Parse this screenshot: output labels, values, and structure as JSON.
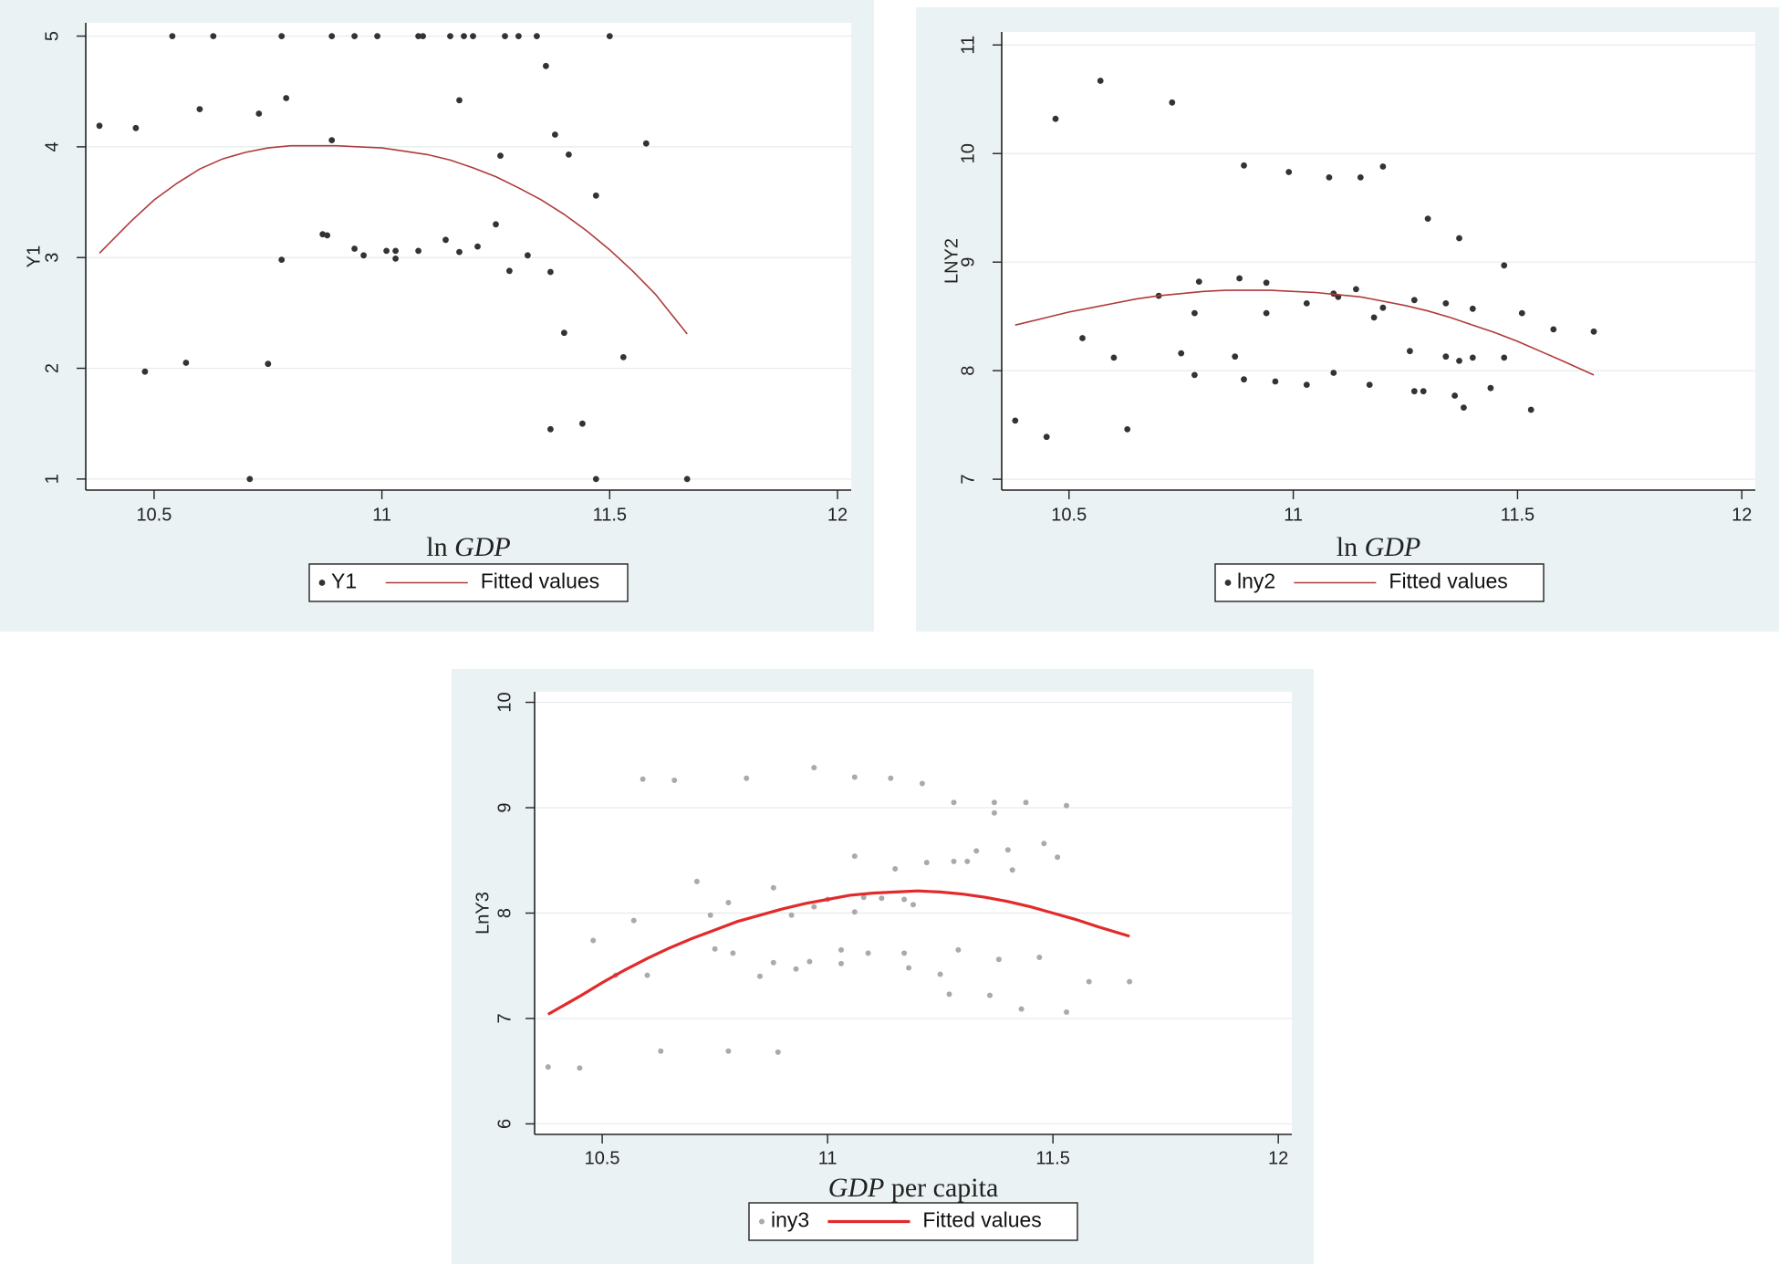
{
  "chart_data": [
    {
      "type": "scatter",
      "xlabel": "ln GDP",
      "xlabel_parts": [
        "ln ",
        "GDP",
        ""
      ],
      "ylabel": "Y1",
      "xlim": [
        10.35,
        12.03
      ],
      "ylim": [
        0.9,
        5.12
      ],
      "xticks": [
        "10.5",
        "11",
        "11.5",
        "12"
      ],
      "yticks": [
        "1",
        "2",
        "3",
        "4",
        "5"
      ],
      "grid": true,
      "legend_position": "bottom",
      "legend": [
        "Y1",
        "Fitted values"
      ],
      "colors": {
        "points": "#333333",
        "fit": "#b03a3a",
        "background": "#eaf2f3",
        "plot": "#ffffff"
      },
      "series": [
        {
          "name": "Y1",
          "kind": "points",
          "points": [
            [
              10.38,
              4.19
            ],
            [
              10.46,
              4.17
            ],
            [
              10.54,
              5.0
            ],
            [
              10.63,
              5.0
            ],
            [
              10.78,
              5.0
            ],
            [
              10.89,
              5.0
            ],
            [
              10.94,
              5.0
            ],
            [
              10.99,
              5.0
            ],
            [
              11.08,
              5.0
            ],
            [
              11.09,
              5.0
            ],
            [
              11.15,
              5.0
            ],
            [
              11.18,
              5.0
            ],
            [
              11.2,
              5.0
            ],
            [
              11.27,
              5.0
            ],
            [
              11.3,
              5.0
            ],
            [
              11.34,
              5.0
            ],
            [
              11.5,
              5.0
            ],
            [
              10.6,
              4.34
            ],
            [
              10.73,
              4.3
            ],
            [
              10.79,
              4.44
            ],
            [
              11.17,
              4.42
            ],
            [
              11.36,
              4.73
            ],
            [
              10.89,
              4.06
            ],
            [
              11.58,
              4.03
            ],
            [
              11.26,
              3.92
            ],
            [
              11.38,
              4.11
            ],
            [
              11.41,
              3.93
            ],
            [
              11.47,
              3.56
            ],
            [
              10.87,
              3.21
            ],
            [
              10.88,
              3.2
            ],
            [
              10.94,
              3.08
            ],
            [
              10.96,
              3.02
            ],
            [
              11.01,
              3.06
            ],
            [
              11.03,
              3.06
            ],
            [
              11.03,
              2.99
            ],
            [
              11.08,
              3.06
            ],
            [
              11.14,
              3.16
            ],
            [
              11.17,
              3.05
            ],
            [
              11.21,
              3.1
            ],
            [
              11.25,
              3.3
            ],
            [
              11.32,
              3.02
            ],
            [
              11.28,
              2.88
            ],
            [
              11.37,
              2.87
            ],
            [
              10.78,
              2.98
            ],
            [
              11.4,
              2.32
            ],
            [
              11.53,
              2.1
            ],
            [
              10.48,
              1.97
            ],
            [
              10.57,
              2.05
            ],
            [
              10.75,
              2.04
            ],
            [
              11.37,
              1.45
            ],
            [
              11.44,
              1.5
            ],
            [
              10.71,
              1.0
            ],
            [
              11.47,
              1.0
            ],
            [
              11.67,
              1.0
            ]
          ]
        },
        {
          "name": "Fitted values",
          "kind": "line",
          "points": [
            [
              10.38,
              3.04
            ],
            [
              10.45,
              3.33
            ],
            [
              10.5,
              3.52
            ],
            [
              10.55,
              3.67
            ],
            [
              10.6,
              3.8
            ],
            [
              10.65,
              3.89
            ],
            [
              10.7,
              3.95
            ],
            [
              10.75,
              3.99
            ],
            [
              10.8,
              4.01
            ],
            [
              10.9,
              4.01
            ],
            [
              10.95,
              4.0
            ],
            [
              11.0,
              3.99
            ],
            [
              11.05,
              3.96
            ],
            [
              11.1,
              3.93
            ],
            [
              11.15,
              3.88
            ],
            [
              11.2,
              3.81
            ],
            [
              11.25,
              3.73
            ],
            [
              11.3,
              3.63
            ],
            [
              11.35,
              3.52
            ],
            [
              11.4,
              3.39
            ],
            [
              11.45,
              3.24
            ],
            [
              11.5,
              3.07
            ],
            [
              11.55,
              2.88
            ],
            [
              11.6,
              2.67
            ],
            [
              11.67,
              2.31
            ]
          ]
        }
      ]
    },
    {
      "type": "scatter",
      "xlabel": "ln GDP",
      "xlabel_parts": [
        "ln ",
        "GDP",
        ""
      ],
      "ylabel": "LNY2",
      "xlim": [
        10.35,
        12.03
      ],
      "ylim": [
        6.9,
        11.12
      ],
      "xticks": [
        "10.5",
        "11",
        "11.5",
        "12"
      ],
      "yticks": [
        "7",
        "8",
        "9",
        "10",
        "11"
      ],
      "grid": true,
      "legend_position": "bottom",
      "legend": [
        "lny2",
        "Fitted values"
      ],
      "colors": {
        "points": "#333333",
        "fit": "#b03a3a",
        "background": "#eaf2f3",
        "plot": "#ffffff"
      },
      "series": [
        {
          "name": "lny2",
          "kind": "points",
          "points": [
            [
              10.47,
              10.32
            ],
            [
              10.57,
              10.67
            ],
            [
              10.73,
              10.47
            ],
            [
              10.89,
              9.89
            ],
            [
              10.99,
              9.83
            ],
            [
              11.08,
              9.78
            ],
            [
              11.15,
              9.78
            ],
            [
              11.2,
              9.88
            ],
            [
              11.3,
              9.4
            ],
            [
              11.37,
              9.22
            ],
            [
              11.47,
              8.97
            ],
            [
              10.7,
              8.69
            ],
            [
              10.79,
              8.82
            ],
            [
              10.88,
              8.85
            ],
            [
              10.94,
              8.81
            ],
            [
              10.78,
              8.53
            ],
            [
              10.94,
              8.53
            ],
            [
              11.03,
              8.62
            ],
            [
              11.09,
              8.71
            ],
            [
              11.1,
              8.68
            ],
            [
              11.14,
              8.75
            ],
            [
              11.18,
              8.49
            ],
            [
              11.2,
              8.58
            ],
            [
              11.27,
              8.65
            ],
            [
              11.34,
              8.62
            ],
            [
              11.4,
              8.57
            ],
            [
              11.51,
              8.53
            ],
            [
              11.58,
              8.38
            ],
            [
              11.67,
              8.36
            ],
            [
              10.53,
              8.3
            ],
            [
              10.6,
              8.12
            ],
            [
              10.75,
              8.16
            ],
            [
              10.87,
              8.13
            ],
            [
              10.78,
              7.96
            ],
            [
              10.89,
              7.92
            ],
            [
              10.96,
              7.9
            ],
            [
              11.03,
              7.87
            ],
            [
              11.09,
              7.98
            ],
            [
              11.17,
              7.87
            ],
            [
              11.26,
              8.18
            ],
            [
              11.27,
              7.81
            ],
            [
              11.29,
              7.81
            ],
            [
              11.34,
              8.13
            ],
            [
              11.37,
              8.09
            ],
            [
              11.4,
              8.12
            ],
            [
              11.47,
              8.12
            ],
            [
              11.44,
              7.84
            ],
            [
              11.36,
              7.77
            ],
            [
              11.38,
              7.66
            ],
            [
              11.53,
              7.64
            ],
            [
              10.38,
              7.54
            ],
            [
              10.45,
              7.39
            ],
            [
              10.63,
              7.46
            ]
          ]
        },
        {
          "name": "Fitted values",
          "kind": "line",
          "points": [
            [
              10.38,
              8.42
            ],
            [
              10.45,
              8.49
            ],
            [
              10.5,
              8.54
            ],
            [
              10.55,
              8.58
            ],
            [
              10.6,
              8.62
            ],
            [
              10.65,
              8.66
            ],
            [
              10.7,
              8.69
            ],
            [
              10.75,
              8.71
            ],
            [
              10.8,
              8.73
            ],
            [
              10.85,
              8.74
            ],
            [
              10.9,
              8.74
            ],
            [
              10.95,
              8.74
            ],
            [
              11.0,
              8.73
            ],
            [
              11.05,
              8.72
            ],
            [
              11.1,
              8.7
            ],
            [
              11.15,
              8.68
            ],
            [
              11.2,
              8.64
            ],
            [
              11.25,
              8.6
            ],
            [
              11.3,
              8.55
            ],
            [
              11.35,
              8.49
            ],
            [
              11.4,
              8.42
            ],
            [
              11.45,
              8.35
            ],
            [
              11.5,
              8.27
            ],
            [
              11.55,
              8.18
            ],
            [
              11.6,
              8.09
            ],
            [
              11.67,
              7.96
            ]
          ]
        }
      ]
    },
    {
      "type": "scatter",
      "xlabel": "GDP per capita",
      "xlabel_parts": [
        "",
        "GDP",
        " per capita"
      ],
      "ylabel": "LnY3",
      "xlim": [
        10.35,
        12.03
      ],
      "ylim": [
        5.9,
        10.1
      ],
      "xticks": [
        "10.5",
        "11",
        "11.5",
        "12"
      ],
      "yticks": [
        "6",
        "7",
        "8",
        "9",
        "10"
      ],
      "grid": true,
      "legend_position": "bottom",
      "legend": [
        "iny3",
        "Fitted values"
      ],
      "colors": {
        "points": "#aaaaaa",
        "fit": "#e22a2a",
        "background": "#eaf2f3",
        "plot": "#ffffff"
      },
      "series": [
        {
          "name": "iny3",
          "kind": "points",
          "points": [
            [
              10.59,
              9.27
            ],
            [
              10.66,
              9.26
            ],
            [
              10.82,
              9.28
            ],
            [
              10.97,
              9.38
            ],
            [
              11.06,
              9.29
            ],
            [
              11.14,
              9.28
            ],
            [
              11.21,
              9.23
            ],
            [
              11.28,
              9.05
            ],
            [
              11.37,
              9.05
            ],
            [
              11.37,
              8.95
            ],
            [
              11.44,
              9.05
            ],
            [
              11.53,
              9.02
            ],
            [
              11.06,
              8.54
            ],
            [
              11.22,
              8.48
            ],
            [
              11.28,
              8.49
            ],
            [
              11.31,
              8.49
            ],
            [
              11.33,
              8.59
            ],
            [
              11.4,
              8.6
            ],
            [
              11.41,
              8.41
            ],
            [
              11.48,
              8.66
            ],
            [
              11.51,
              8.53
            ],
            [
              10.71,
              8.3
            ],
            [
              10.88,
              8.24
            ],
            [
              11.15,
              8.42
            ],
            [
              10.48,
              7.74
            ],
            [
              10.57,
              7.93
            ],
            [
              10.74,
              7.98
            ],
            [
              10.78,
              8.1
            ],
            [
              10.92,
              7.98
            ],
            [
              10.97,
              8.06
            ],
            [
              11.0,
              8.13
            ],
            [
              11.08,
              8.15
            ],
            [
              11.12,
              8.14
            ],
            [
              11.17,
              8.13
            ],
            [
              11.19,
              8.08
            ],
            [
              11.06,
              8.01
            ],
            [
              10.75,
              7.66
            ],
            [
              10.79,
              7.62
            ],
            [
              10.96,
              7.54
            ],
            [
              11.03,
              7.65
            ],
            [
              11.03,
              7.52
            ],
            [
              11.09,
              7.62
            ],
            [
              11.17,
              7.62
            ],
            [
              11.18,
              7.48
            ],
            [
              11.29,
              7.65
            ],
            [
              11.38,
              7.56
            ],
            [
              11.47,
              7.58
            ],
            [
              10.85,
              7.4
            ],
            [
              10.88,
              7.53
            ],
            [
              10.93,
              7.47
            ],
            [
              10.53,
              7.41
            ],
            [
              10.6,
              7.41
            ],
            [
              11.25,
              7.42
            ],
            [
              11.27,
              7.23
            ],
            [
              11.36,
              7.22
            ],
            [
              11.58,
              7.35
            ],
            [
              11.67,
              7.35
            ],
            [
              11.43,
              7.09
            ],
            [
              11.53,
              7.06
            ],
            [
              10.38,
              6.54
            ],
            [
              10.45,
              6.53
            ],
            [
              10.63,
              6.69
            ],
            [
              10.78,
              6.69
            ],
            [
              10.89,
              6.68
            ]
          ]
        },
        {
          "name": "Fitted values",
          "kind": "line",
          "points": [
            [
              10.38,
              7.04
            ],
            [
              10.45,
              7.21
            ],
            [
              10.5,
              7.34
            ],
            [
              10.55,
              7.46
            ],
            [
              10.6,
              7.57
            ],
            [
              10.65,
              7.67
            ],
            [
              10.7,
              7.76
            ],
            [
              10.75,
              7.84
            ],
            [
              10.8,
              7.92
            ],
            [
              10.85,
              7.98
            ],
            [
              10.9,
              8.04
            ],
            [
              10.95,
              8.09
            ],
            [
              11.0,
              8.13
            ],
            [
              11.05,
              8.17
            ],
            [
              11.1,
              8.19
            ],
            [
              11.15,
              8.2
            ],
            [
              11.2,
              8.21
            ],
            [
              11.25,
              8.2
            ],
            [
              11.3,
              8.18
            ],
            [
              11.35,
              8.15
            ],
            [
              11.4,
              8.11
            ],
            [
              11.45,
              8.06
            ],
            [
              11.5,
              8.0
            ],
            [
              11.55,
              7.94
            ],
            [
              11.6,
              7.87
            ],
            [
              11.67,
              7.78
            ]
          ]
        }
      ]
    }
  ]
}
